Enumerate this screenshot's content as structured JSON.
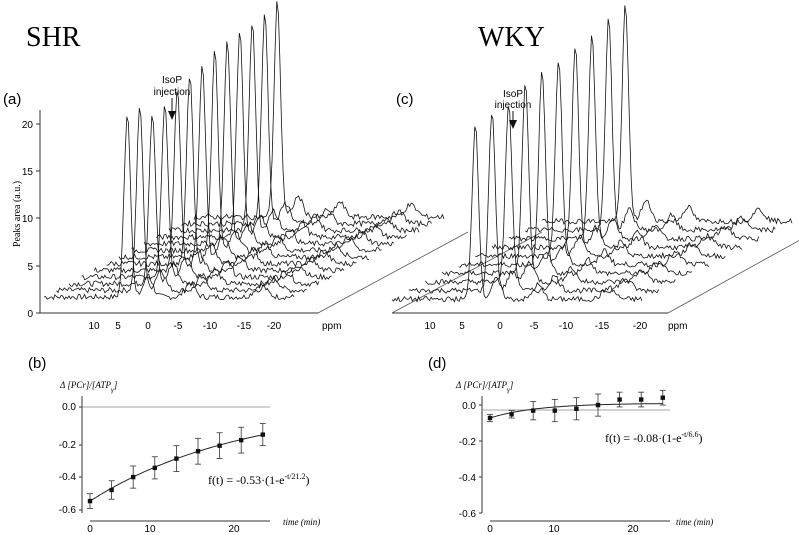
{
  "headers": {
    "left": "SHR",
    "right": "WKY"
  },
  "panels": {
    "a": "(a)",
    "b": "(b)",
    "c": "(c)",
    "d": "(d)"
  },
  "spectra": {
    "annotation_line1": "IsoP",
    "annotation_line2": "injection",
    "ylabel": "Peaks area (a.u.)",
    "yticks": [
      "0",
      "5",
      "10",
      "15",
      "20"
    ],
    "xticks": [
      "10",
      "5",
      "0",
      "-5",
      "-10",
      "-15",
      "-20"
    ],
    "xunit": "ppm"
  },
  "kinetics": {
    "ylabel_prefix": "Δ [PCr]/[ATP",
    "ylabel_sub": "γ",
    "ylabel_suffix": "]",
    "xlabel": "time (min)",
    "yticks": [
      "0.0",
      "-0.2",
      "-0.4",
      "-0.6"
    ],
    "xticks": [
      "0",
      "10",
      "20"
    ]
  },
  "formulas": {
    "b_base": "f(t) = -0.53·(1-e",
    "b_exp": "-t/21.2",
    "b_tail": ")",
    "d_base": "f(t) = -0.08·(1-e",
    "d_exp": "-t/6.6",
    "d_tail": ")"
  },
  "chart_data": [
    {
      "panel": "a",
      "type": "line",
      "title": "SHR",
      "xlabel": "ppm",
      "ylabel": "Peaks area (a.u.)",
      "ylim": [
        0,
        20
      ],
      "xlim": [
        10,
        -20
      ],
      "peak_heights": [
        20,
        20,
        18.5,
        19,
        19.8,
        20.5,
        21,
        21.8,
        22,
        22.5,
        22.8,
        23,
        23.5
      ]
    },
    {
      "panel": "c",
      "type": "line",
      "title": "WKY",
      "xlabel": "ppm",
      "ylim": [
        0,
        20
      ],
      "xlim": [
        10,
        -20
      ],
      "peak_heights": [
        19.5,
        20,
        20,
        21,
        21.5,
        22,
        22.5,
        22.8,
        23.5,
        24
      ]
    },
    {
      "panel": "b",
      "type": "scatter",
      "xlabel": "time (min)",
      "ylabel": "Δ [PCr]/[ATPγ]",
      "ylim": [
        -0.6,
        0.05
      ],
      "xlim": [
        0,
        25
      ],
      "x": [
        0,
        3,
        6,
        9,
        12,
        15,
        18,
        21,
        24
      ],
      "y": [
        -0.53,
        -0.47,
        -0.4,
        -0.35,
        -0.3,
        -0.26,
        -0.23,
        -0.2,
        -0.17
      ],
      "err": [
        0.04,
        0.05,
        0.06,
        0.06,
        0.07,
        0.07,
        0.07,
        0.07,
        0.06
      ],
      "fit": {
        "A": -0.53,
        "tau": 21.2
      }
    },
    {
      "panel": "d",
      "type": "scatter",
      "xlabel": "time (min)",
      "ylabel": "Δ [PCr]/[ATPγ]",
      "ylim": [
        -0.6,
        0.05
      ],
      "xlim": [
        0,
        25
      ],
      "x": [
        0,
        3,
        6,
        9,
        12,
        15,
        18,
        21,
        24
      ],
      "y": [
        -0.08,
        -0.06,
        -0.04,
        -0.04,
        -0.03,
        -0.01,
        0.02,
        0.02,
        0.03
      ],
      "err": [
        0.02,
        0.02,
        0.05,
        0.06,
        0.06,
        0.06,
        0.04,
        0.04,
        0.04
      ],
      "fit": {
        "A": -0.08,
        "tau": 6.6
      }
    }
  ]
}
